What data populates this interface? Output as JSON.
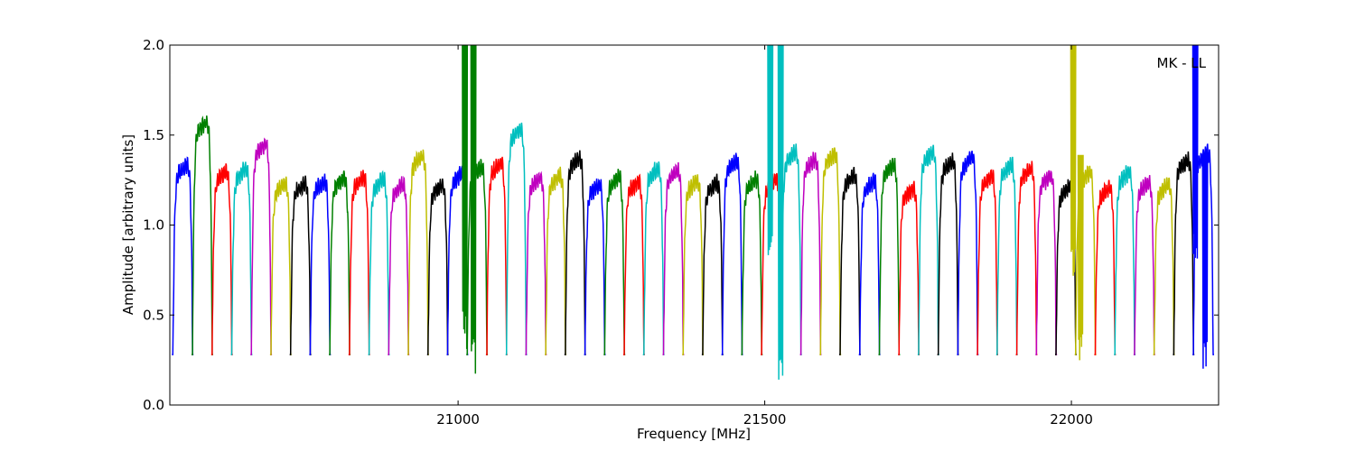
{
  "chart_data": {
    "type": "line",
    "title": "",
    "xlabel": "Frequency [MHz]",
    "ylabel": "Amplitude [arbitrary units]",
    "annotation": "MK - LL",
    "xlim": [
      20530,
      22240
    ],
    "ylim": [
      0.0,
      2.0
    ],
    "xticks": [
      21000,
      21500,
      22000
    ],
    "yticks": [
      0.0,
      0.5,
      1.0,
      1.5,
      2.0
    ],
    "xtick_labels": [
      "21000",
      "21500",
      "22000"
    ],
    "ytick_labels": [
      "0.0",
      "0.5",
      "1.0",
      "1.5",
      "2.0"
    ],
    "grid": false,
    "legend": "none",
    "colors": [
      "#0000ff",
      "#008000",
      "#ff0000",
      "#00bfbf",
      "#bf00bf",
      "#bfbf00",
      "#000000"
    ],
    "channel_width_mhz": 32,
    "series": [
      {
        "center": 20551,
        "peak": 1.31,
        "color": "#0000ff"
      },
      {
        "center": 20583,
        "peak": 1.55,
        "color": "#008000"
      },
      {
        "center": 20615,
        "peak": 1.27,
        "color": "#ff0000"
      },
      {
        "center": 20647,
        "peak": 1.29,
        "color": "#00bfbf"
      },
      {
        "center": 20679,
        "peak": 1.43,
        "color": "#bf00bf"
      },
      {
        "center": 20711,
        "peak": 1.21,
        "color": "#bfbf00"
      },
      {
        "center": 20743,
        "peak": 1.21,
        "color": "#000000"
      },
      {
        "center": 20775,
        "peak": 1.22,
        "color": "#0000ff"
      },
      {
        "center": 20807,
        "peak": 1.24,
        "color": "#008000"
      },
      {
        "center": 20839,
        "peak": 1.24,
        "color": "#ff0000"
      },
      {
        "center": 20871,
        "peak": 1.23,
        "color": "#00bfbf"
      },
      {
        "center": 20903,
        "peak": 1.2,
        "color": "#bf00bf"
      },
      {
        "center": 20935,
        "peak": 1.36,
        "color": "#bfbf00"
      },
      {
        "center": 20967,
        "peak": 1.2,
        "color": "#000000"
      },
      {
        "center": 20999,
        "peak": 1.26,
        "color": "#0000ff"
      },
      {
        "center": 21031,
        "peak": 1.3,
        "color": "#008000"
      },
      {
        "center": 21063,
        "peak": 1.32,
        "color": "#ff0000"
      },
      {
        "center": 21095,
        "peak": 1.51,
        "color": "#00bfbf"
      },
      {
        "center": 21127,
        "peak": 1.24,
        "color": "#bf00bf"
      },
      {
        "center": 21159,
        "peak": 1.25,
        "color": "#bfbf00"
      },
      {
        "center": 21191,
        "peak": 1.35,
        "color": "#000000"
      },
      {
        "center": 21223,
        "peak": 1.2,
        "color": "#0000ff"
      },
      {
        "center": 21255,
        "peak": 1.24,
        "color": "#008000"
      },
      {
        "center": 21287,
        "peak": 1.22,
        "color": "#ff0000"
      },
      {
        "center": 21319,
        "peak": 1.29,
        "color": "#00bfbf"
      },
      {
        "center": 21351,
        "peak": 1.28,
        "color": "#bf00bf"
      },
      {
        "center": 21383,
        "peak": 1.22,
        "color": "#bfbf00"
      },
      {
        "center": 21415,
        "peak": 1.21,
        "color": "#000000"
      },
      {
        "center": 21447,
        "peak": 1.33,
        "color": "#0000ff"
      },
      {
        "center": 21479,
        "peak": 1.23,
        "color": "#008000"
      },
      {
        "center": 21511,
        "peak": 1.23,
        "color": "#ff0000"
      },
      {
        "center": 21543,
        "peak": 1.38,
        "color": "#00bfbf"
      },
      {
        "center": 21575,
        "peak": 1.34,
        "color": "#bf00bf"
      },
      {
        "center": 21607,
        "peak": 1.37,
        "color": "#bfbf00"
      },
      {
        "center": 21639,
        "peak": 1.25,
        "color": "#000000"
      },
      {
        "center": 21671,
        "peak": 1.22,
        "color": "#0000ff"
      },
      {
        "center": 21703,
        "peak": 1.31,
        "color": "#008000"
      },
      {
        "center": 21735,
        "peak": 1.18,
        "color": "#ff0000"
      },
      {
        "center": 21767,
        "peak": 1.38,
        "color": "#00bfbf"
      },
      {
        "center": 21799,
        "peak": 1.33,
        "color": "#000000"
      },
      {
        "center": 21831,
        "peak": 1.35,
        "color": "#0000ff"
      },
      {
        "center": 21863,
        "peak": 1.25,
        "color": "#ff0000"
      },
      {
        "center": 21895,
        "peak": 1.31,
        "color": "#00bfbf"
      },
      {
        "center": 21927,
        "peak": 1.29,
        "color": "#ff0000"
      },
      {
        "center": 21959,
        "peak": 1.25,
        "color": "#bf00bf"
      },
      {
        "center": 21991,
        "peak": 1.19,
        "color": "#000000"
      },
      {
        "center": 22023,
        "peak": 1.27,
        "color": "#bfbf00"
      },
      {
        "center": 22055,
        "peak": 1.18,
        "color": "#ff0000"
      },
      {
        "center": 22087,
        "peak": 1.27,
        "color": "#00bfbf"
      },
      {
        "center": 22119,
        "peak": 1.21,
        "color": "#bf00bf"
      },
      {
        "center": 22151,
        "peak": 1.2,
        "color": "#bfbf00"
      },
      {
        "center": 22183,
        "peak": 1.34,
        "color": "#000000"
      },
      {
        "center": 22215,
        "peak": 1.38,
        "color": "#0000ff"
      }
    ],
    "spikes": [
      {
        "x": 21011,
        "low": 0.3,
        "high": 2.0,
        "color": "#008000"
      },
      {
        "x": 21025,
        "low": 0.14,
        "high": 2.0,
        "color": "#008000"
      },
      {
        "x": 21509,
        "low": 0.8,
        "high": 2.0,
        "color": "#00bfbf"
      },
      {
        "x": 21526,
        "low": 0.13,
        "high": 2.0,
        "color": "#00bfbf"
      },
      {
        "x": 22003,
        "low": 0.7,
        "high": 2.0,
        "color": "#bfbf00"
      },
      {
        "x": 22015,
        "low": 0.23,
        "high": 1.39,
        "color": "#bfbf00"
      },
      {
        "x": 22202,
        "low": 0.8,
        "high": 2.0,
        "color": "#0000ff"
      },
      {
        "x": 22218,
        "low": 0.2,
        "high": 1.4,
        "color": "#0000ff"
      }
    ]
  }
}
